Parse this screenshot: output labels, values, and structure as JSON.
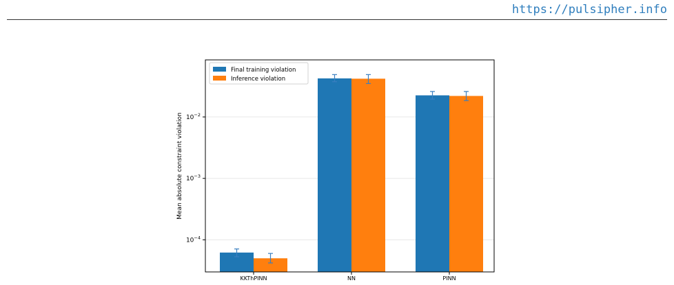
{
  "header": {
    "url_text": "https://pulsipher.info"
  },
  "chart_data": {
    "type": "bar",
    "categories": [
      "KKThPINN",
      "NN",
      "PINN"
    ],
    "series": [
      {
        "name": "Final training violation",
        "color": "#1f77b4",
        "values": [
          6.2e-05,
          0.0425,
          0.0225
        ],
        "err_low": [
          5.3e-05,
          0.0375,
          0.0195
        ],
        "err_high": [
          7.1e-05,
          0.049,
          0.026
        ]
      },
      {
        "name": "Inference violation",
        "color": "#ff7f0e",
        "values": [
          5e-05,
          0.042,
          0.022
        ],
        "err_low": [
          4.2e-05,
          0.035,
          0.0185
        ],
        "err_high": [
          6e-05,
          0.049,
          0.026
        ]
      }
    ],
    "ylabel": "Mean absolute constraint violation",
    "xlabel": "",
    "yscale": "log",
    "ylim": [
      3e-05,
      0.085
    ],
    "yticks": [
      {
        "value": 0.0001,
        "base": "10",
        "exp": "−4"
      },
      {
        "value": 0.001,
        "base": "10",
        "exp": "−3"
      },
      {
        "value": 0.01,
        "base": "10",
        "exp": "−2"
      }
    ],
    "grid": "y-major",
    "legend_position": "top-left"
  }
}
